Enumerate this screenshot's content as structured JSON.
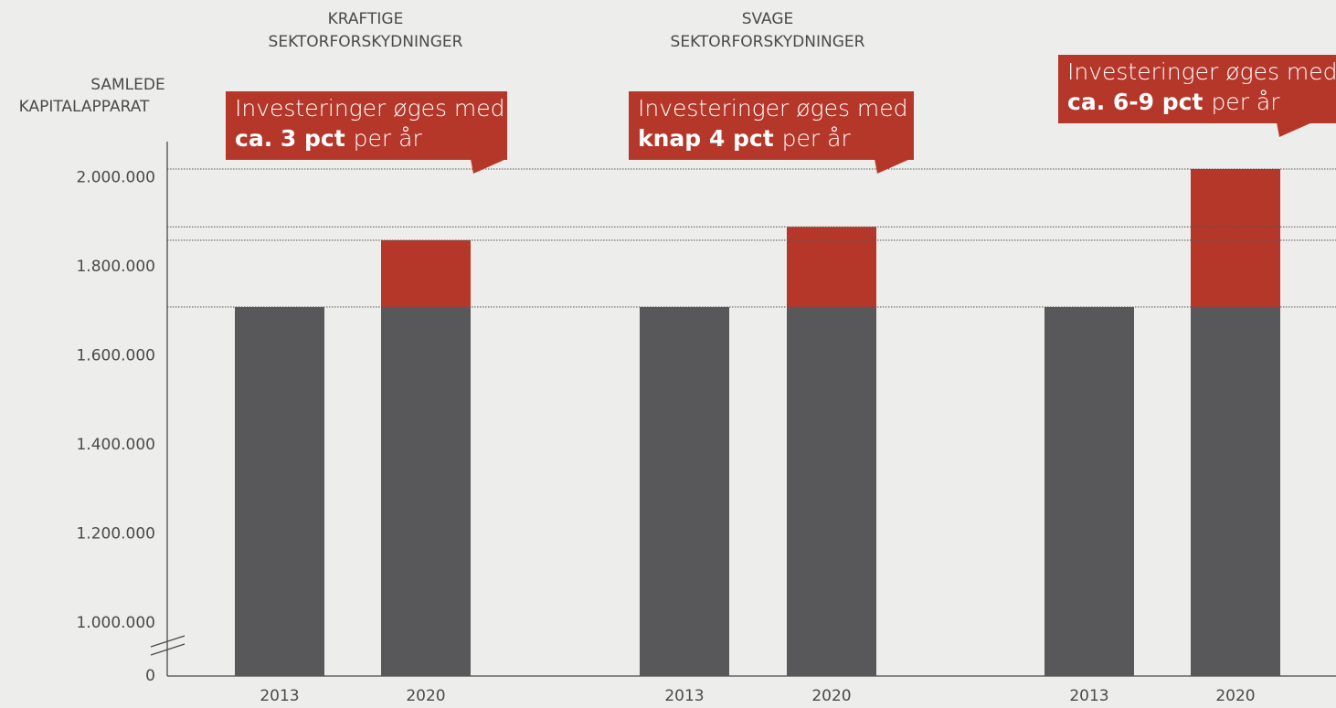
{
  "chart_data": {
    "type": "bar",
    "stacked": true,
    "y_axis_label": [
      "SAMLEDE",
      "KAPITALAPPARAT"
    ],
    "axis_break": true,
    "categories": [
      "2013",
      "2020",
      "2013",
      "2020",
      "2013",
      "2020"
    ],
    "groups": [
      [
        "KRAFTIGE",
        "SEKTORFORSKYDNINGER"
      ],
      [
        "SVAGE",
        "SEKTORFORSKYDNINGER"
      ]
    ],
    "series": [
      {
        "color": "#58585a",
        "values": [
          1710000,
          1710000,
          1710000,
          1710000,
          1710000,
          1710000
        ]
      },
      {
        "color": "#b5372a",
        "values": [
          null,
          150000,
          null,
          180000,
          null,
          310000
        ]
      }
    ],
    "ylim": [
      0,
      2100000
    ],
    "yticks": [
      0,
      {
        "value": 1000000,
        "label": "1.000.000"
      },
      {
        "value": 1200000,
        "label": "1.200.000"
      },
      {
        "value": 1400000,
        "label": "1.400.000"
      },
      {
        "value": 1600000,
        "label": "1.600.000"
      },
      {
        "value": 1800000,
        "label": "1.800.000"
      },
      {
        "value": 2000000,
        "label": "2.000.000"
      }
    ],
    "reference_lines": true,
    "annotations": [
      {
        "line1": "Investeringer øges med",
        "bold": "ca. 3 pct",
        "rest": "per år"
      },
      {
        "line1": "Investeringer øges med",
        "bold": "knap 4 pct",
        "rest": "per år"
      },
      {
        "line1": "Investeringer øges med",
        "bold": "ca. 6-9 pct",
        "rest": "per år"
      }
    ]
  }
}
